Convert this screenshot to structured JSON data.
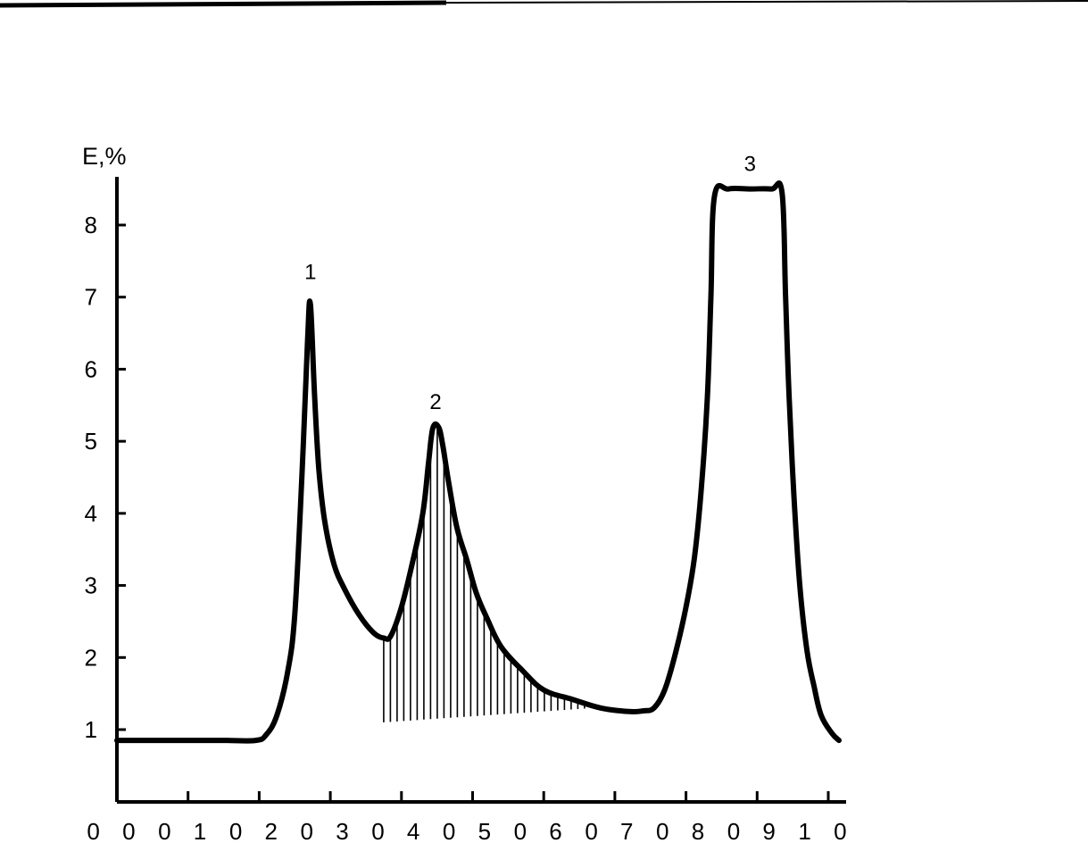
{
  "chart_data": {
    "type": "line",
    "ylabel": "E,%",
    "xlabel": "",
    "title": "",
    "xlim": [
      0,
      10
    ],
    "ylim": [
      0,
      9
    ],
    "x_tick_labels": [
      "0 0",
      "0 1",
      "0 2",
      "0 3",
      "0 4",
      "0 5",
      "0 6",
      "0 7",
      "0 8",
      "0 9",
      "1 0"
    ],
    "x_ticks": [
      0,
      1,
      2,
      3,
      4,
      5,
      6,
      7,
      8,
      9,
      10
    ],
    "y_ticks": [
      1,
      2,
      3,
      4,
      5,
      6,
      7,
      8
    ],
    "y_tick_labels": [
      "1",
      "2",
      "3",
      "4",
      "5",
      "6",
      "7",
      "8"
    ],
    "grid": false,
    "series": [
      {
        "x": [
          0.0,
          1.0,
          1.5,
          1.95,
          2.1,
          2.25,
          2.4,
          2.5,
          2.6,
          2.68,
          2.72,
          2.78,
          2.84,
          2.92,
          3.05,
          3.2,
          3.4,
          3.6,
          3.75,
          3.85,
          4.0,
          4.15,
          4.3,
          4.38,
          4.44,
          4.52,
          4.58,
          4.66,
          4.78,
          4.92,
          5.05,
          5.2,
          5.4,
          5.7,
          6.0,
          6.4,
          6.8,
          7.2,
          7.4,
          7.55,
          7.7,
          7.85,
          8.0,
          8.12,
          8.22,
          8.3,
          8.35,
          8.4,
          8.6,
          8.9,
          9.2,
          9.35,
          9.4,
          9.45,
          9.52,
          9.6,
          9.7,
          9.8,
          9.9,
          10.05,
          10.15
        ],
        "y": [
          0.85,
          0.85,
          0.85,
          0.85,
          0.93,
          1.2,
          1.8,
          2.6,
          4.5,
          6.4,
          6.9,
          5.6,
          4.6,
          3.9,
          3.3,
          2.95,
          2.6,
          2.35,
          2.27,
          2.3,
          2.7,
          3.3,
          4.0,
          4.7,
          5.18,
          5.2,
          4.95,
          4.45,
          3.8,
          3.35,
          2.9,
          2.55,
          2.15,
          1.82,
          1.55,
          1.42,
          1.3,
          1.25,
          1.26,
          1.3,
          1.55,
          2.05,
          2.7,
          3.4,
          4.4,
          5.6,
          7.0,
          8.4,
          8.5,
          8.5,
          8.5,
          8.45,
          7.0,
          5.6,
          4.2,
          3.0,
          2.1,
          1.6,
          1.2,
          0.95,
          0.85
        ]
      }
    ],
    "shaded_region": {
      "x_start": 3.75,
      "x_end": 6.7,
      "y_base_start": 1.1,
      "y_base_end": 1.3
    },
    "annotations": [
      {
        "text": "1",
        "x": 2.72,
        "y": 7.25
      },
      {
        "text": "2",
        "x": 4.48,
        "y": 5.45
      },
      {
        "text": "3",
        "x": 8.9,
        "y": 8.75
      }
    ]
  }
}
